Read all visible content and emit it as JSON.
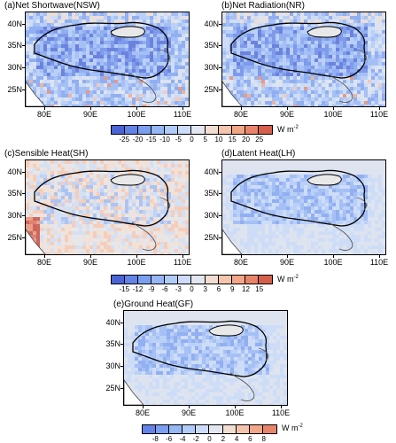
{
  "panels": [
    {
      "id": "a",
      "title": "(a)Net Shortwave(NSW)",
      "tone": "blue"
    },
    {
      "id": "b",
      "title": "(b)Net Radiation(NR)",
      "tone": "blue"
    },
    {
      "id": "c",
      "title": "(c)Sensible Heat(SH)",
      "tone": "mixed"
    },
    {
      "id": "d",
      "title": "(d)Latent Heat(LH)",
      "tone": "blue-light"
    },
    {
      "id": "e",
      "title": "(e)Ground Heat(GF)",
      "tone": "blue-light"
    }
  ],
  "latitudes": [
    "40N",
    "35N",
    "30N",
    "25N"
  ],
  "longitudes": [
    "80E",
    "90E",
    "100E",
    "110E"
  ],
  "colorbars": [
    {
      "id": "cb1",
      "labels": [
        "-25",
        "-20",
        "-15",
        "-10",
        "-5",
        "0",
        "5",
        "10",
        "15",
        "20",
        "25"
      ],
      "unit": "W m",
      "unit_exp": "-2"
    },
    {
      "id": "cb2",
      "labels": [
        "-15",
        "-12",
        "-9",
        "-6",
        "-3",
        "0",
        "3",
        "6",
        "9",
        "12",
        "15"
      ],
      "unit": "W m",
      "unit_exp": "-2"
    },
    {
      "id": "cb3",
      "labels": [
        "-8",
        "-6",
        "-4",
        "-2",
        "0",
        "2",
        "4",
        "6",
        "8"
      ],
      "unit": "W m",
      "unit_exp": "-2"
    }
  ],
  "colors": {
    "scale": [
      "#3a4cc0",
      "#4a64d6",
      "#6283e8",
      "#7b9ff0",
      "#96b6f5",
      "#b1cbf8",
      "#ccdcf8",
      "#e2e6ee",
      "#f1ddd2",
      "#f5c4ad",
      "#f2a688",
      "#e8846a",
      "#d65f4c",
      "#c0392f",
      "#a6101f"
    ]
  }
}
